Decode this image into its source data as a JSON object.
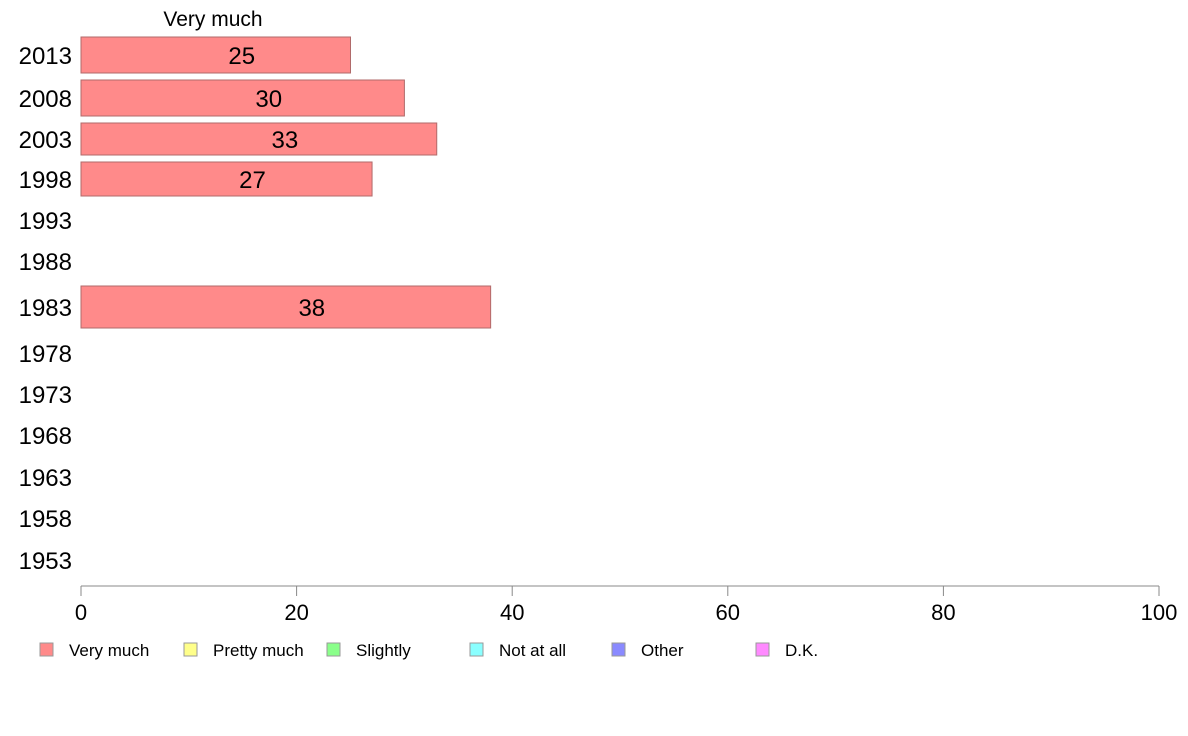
{
  "chart_data": {
    "type": "bar",
    "orientation": "horizontal",
    "column_title": "Very much",
    "categories": [
      "2013",
      "2008",
      "2003",
      "1998",
      "1993",
      "1988",
      "1983",
      "1978",
      "1973",
      "1968",
      "1963",
      "1958",
      "1953"
    ],
    "series": [
      {
        "name": "Very much",
        "color": "#ff8a8a",
        "values": [
          25,
          30,
          33,
          27,
          null,
          null,
          38,
          null,
          null,
          null,
          null,
          null,
          null
        ]
      }
    ],
    "xlim": [
      0,
      100
    ],
    "xticks": [
      0,
      20,
      40,
      60,
      80,
      100
    ],
    "grid": false,
    "legend_position": "bottom",
    "legend": [
      {
        "label": "Very much",
        "color": "#ff8a8a"
      },
      {
        "label": "Pretty much",
        "color": "#ffff8a"
      },
      {
        "label": "Slightly",
        "color": "#8aff8a"
      },
      {
        "label": "Not at all",
        "color": "#8affff"
      },
      {
        "label": "Other",
        "color": "#8a8aff"
      },
      {
        "label": "D.K.",
        "color": "#ff8aff"
      }
    ]
  }
}
